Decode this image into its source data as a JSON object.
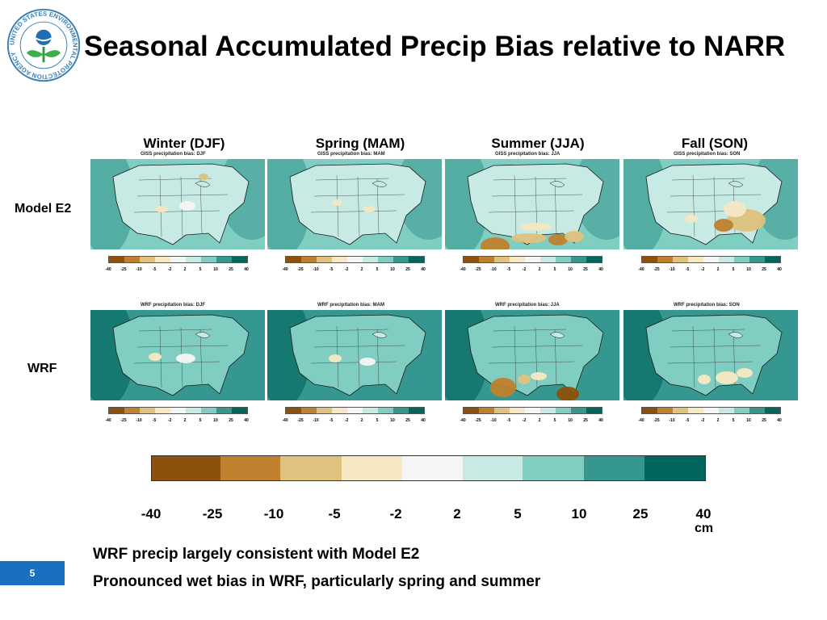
{
  "header": {
    "title": "Seasonal Accumulated Precip Bias relative to NARR",
    "logo_text": "UNITED STATES ENVIRONMENTAL PROTECTION AGENCY",
    "logo_icon": "epa-flower-logo"
  },
  "seasons": [
    "Winter (DJF)",
    "Spring (MAM)",
    "Summer (JJA)",
    "Fall (SON)"
  ],
  "rows": [
    "Model E2",
    "WRF"
  ],
  "panels": {
    "giss": [
      {
        "title": "GISS precipitation bias: DJF",
        "minmax": ""
      },
      {
        "title": "GISS precipitation bias: MAM",
        "minmax": ""
      },
      {
        "title": "GISS precipitation bias: JJA",
        "minmax": ""
      },
      {
        "title": "GISS precipitation bias: SON",
        "minmax": ""
      }
    ],
    "wrf": [
      {
        "title": "WRF precipitation bias: DJF",
        "minmax": ""
      },
      {
        "title": "WRF precipitation bias: MAM",
        "minmax": ""
      },
      {
        "title": "WRF precipitation bias: JJA",
        "minmax": ""
      },
      {
        "title": "WRF precipitation bias: SON",
        "minmax": ""
      }
    ]
  },
  "colorbar": {
    "levels": [
      "-40",
      "-25",
      "-10",
      "-5",
      "-2",
      "2",
      "5",
      "10",
      "25",
      "40"
    ],
    "colors": [
      "#8c510a",
      "#bf812d",
      "#dfc27d",
      "#f6e8c3",
      "#f5f5f5",
      "#c7eae5",
      "#80cdc1",
      "#35978f",
      "#01665e"
    ],
    "unit": "cm"
  },
  "notes": [
    "WRF precip largely consistent with Model E2",
    "Pronounced wet bias in WRF, particularly spring and summer"
  ],
  "page_number": "5"
}
